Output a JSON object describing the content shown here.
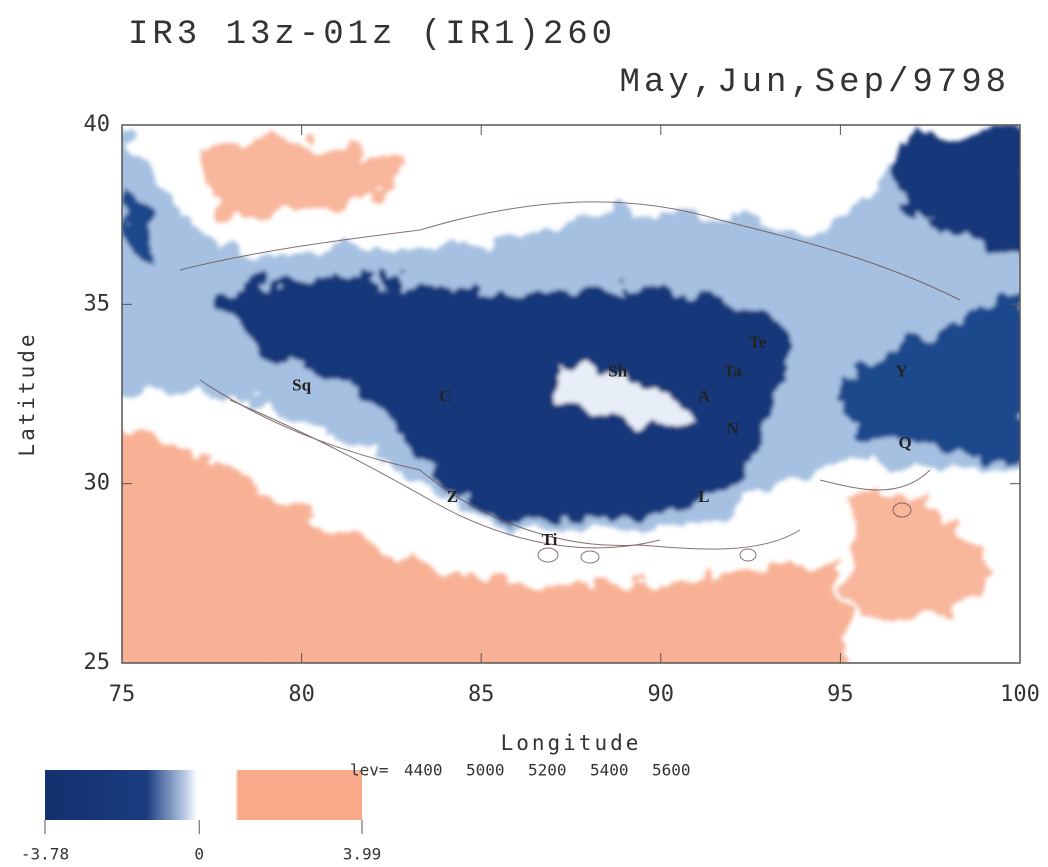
{
  "chart_data": {
    "type": "map",
    "title": "IR3 13z-01z (IR1)260",
    "subtitle": "May,Jun,Sep/9798",
    "xlabel": "Longitude",
    "ylabel": "Latitude",
    "xlim": [
      75,
      100
    ],
    "ylim": [
      25,
      40
    ],
    "xticks": [
      75,
      80,
      85,
      90,
      95,
      100
    ],
    "yticks": [
      25,
      30,
      35,
      40
    ],
    "stations": [
      {
        "name": "Sq",
        "lon": 80,
        "lat": 32.7
      },
      {
        "name": "C",
        "lon": 84,
        "lat": 32.4
      },
      {
        "name": "Sh",
        "lon": 88.8,
        "lat": 33.1
      },
      {
        "name": "Te",
        "lon": 92.7,
        "lat": 33.9
      },
      {
        "name": "Ta",
        "lon": 92,
        "lat": 33.1
      },
      {
        "name": "A",
        "lon": 91.2,
        "lat": 32.4
      },
      {
        "name": "N",
        "lon": 92,
        "lat": 31.5
      },
      {
        "name": "Y",
        "lon": 96.7,
        "lat": 33.1
      },
      {
        "name": "Q",
        "lon": 96.8,
        "lat": 31.1
      },
      {
        "name": "Z",
        "lon": 84.2,
        "lat": 29.6
      },
      {
        "name": "L",
        "lon": 91.2,
        "lat": 29.6
      },
      {
        "name": "Ti",
        "lon": 86.9,
        "lat": 28.4
      }
    ],
    "contour_label": "lev=",
    "contour_levels": [
      4400,
      5000,
      5200,
      5400,
      5600
    ],
    "colorbar": {
      "lim": [
        -3.78,
        3.99
      ],
      "ticks": [
        -3.78,
        0,
        3.99
      ]
    }
  }
}
